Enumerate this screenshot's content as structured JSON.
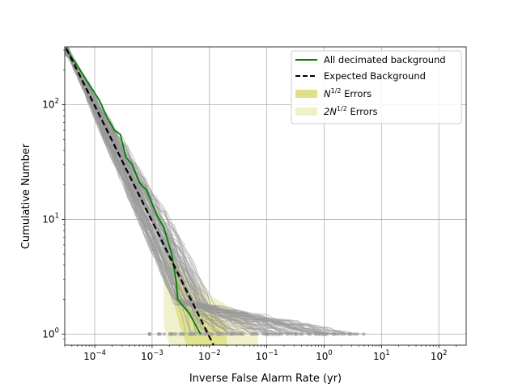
{
  "chart_data": {
    "type": "line",
    "xlabel": "Inverse False Alarm Rate (yr)",
    "ylabel": "Cumulative Number",
    "xscale": "log",
    "yscale": "log",
    "xlim": [
      3e-05,
      300
    ],
    "ylim": [
      0.8,
      320
    ],
    "grid": true,
    "legend_position": "top-right",
    "x_ticks": [
      {
        "value": 0.0001,
        "base": "10",
        "exp": "−4"
      },
      {
        "value": 0.001,
        "base": "10",
        "exp": "−3"
      },
      {
        "value": 0.01,
        "base": "10",
        "exp": "−2"
      },
      {
        "value": 0.1,
        "base": "10",
        "exp": "−1"
      },
      {
        "value": 1,
        "base": "10",
        "exp": "0"
      },
      {
        "value": 10,
        "base": "10",
        "exp": "1"
      },
      {
        "value": 100,
        "base": "10",
        "exp": "2"
      }
    ],
    "y_ticks": [
      {
        "value": 1,
        "base": "10",
        "exp": "0"
      },
      {
        "value": 10,
        "base": "10",
        "exp": "1"
      },
      {
        "value": 100,
        "base": "10",
        "exp": "2"
      }
    ],
    "legend": [
      {
        "label": "All decimated background",
        "style": "line",
        "color": "#008000"
      },
      {
        "label": "Expected Background",
        "style": "dashed",
        "color": "#000000"
      },
      {
        "label_base": "N",
        "label_sup": "1/2",
        "label_rest": " Errors",
        "style": "patch",
        "color": "#e0e08a"
      },
      {
        "label_base": "2N",
        "label_sup": "1/2",
        "label_rest": " Errors",
        "style": "patch",
        "color": "#f0f0c8"
      }
    ],
    "colors": {
      "background_curves": "#999999",
      "decimated": "#008000",
      "expected": "#000000",
      "err1": "#e0e08a",
      "err2": "#f0f0c8"
    },
    "expected_background": {
      "x": [
        3.2e-05,
        0.0118
      ],
      "y": [
        310,
        0.8
      ]
    },
    "decimated_background": {
      "x": [
        3.2e-05,
        5e-05,
        8e-05,
        0.00012,
        0.00016,
        0.00022,
        0.00028,
        0.00035,
        0.00045,
        0.0006,
        0.0008,
        0.0012,
        0.0016,
        0.0022,
        0.0026,
        0.0027,
        0.0028,
        0.0045,
        0.007
      ],
      "y": [
        300,
        220,
        150,
        110,
        80,
        60,
        55,
        35,
        30,
        21,
        18,
        11,
        8.5,
        5,
        3,
        2.5,
        2,
        1.5,
        1
      ]
    },
    "error_band_n": {
      "x": [
        0.0025,
        0.003,
        0.004,
        0.006,
        0.01,
        0.02
      ],
      "y_upper": [
        4.5,
        3.5,
        2.5,
        2,
        1.6,
        1.2
      ],
      "y_lower": [
        1.7,
        1.2,
        0.8,
        0.8,
        0.8,
        0.8
      ]
    },
    "error_band_2n": {
      "x": [
        0.0016,
        0.002,
        0.003,
        0.005,
        0.01,
        0.03,
        0.07
      ],
      "y_upper": [
        7,
        5,
        4,
        3,
        2.2,
        1.6,
        1.1
      ],
      "y_lower": [
        1.2,
        0.8,
        0.8,
        0.8,
        0.8,
        0.8,
        0.8
      ]
    },
    "background_trials": {
      "count": 100,
      "end_points_x": [
        0.0012,
        0.0018,
        0.0025,
        0.004,
        0.006,
        0.009,
        0.013,
        0.019,
        0.027,
        0.04,
        0.055,
        0.08,
        0.11,
        0.16,
        0.22,
        0.32,
        0.45,
        0.65,
        0.9,
        1.3,
        1.8,
        2.5,
        3.8
      ]
    }
  }
}
